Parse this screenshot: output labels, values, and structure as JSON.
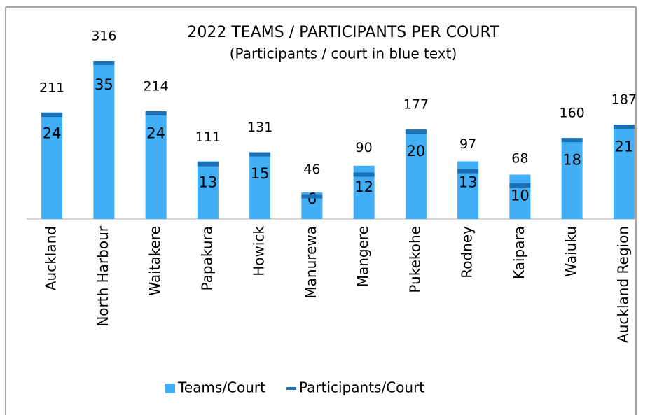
{
  "chart_data": {
    "type": "bar",
    "title": "2022 TEAMS / PARTICIPANTS PER COURT",
    "subtitle": "(Participants / court in blue text)",
    "categories": [
      "Auckland",
      "North Harbour",
      "Waitakere",
      "Papakura",
      "Howick",
      "Manurewa",
      "Mangere",
      "Pukekohe",
      "Rodney",
      "Kaipara",
      "Waiuku",
      "Auckland Region"
    ],
    "series": [
      {
        "name": "Teams/Court",
        "color": "#41aef5",
        "values": [
          24,
          35,
          24,
          13,
          15,
          6,
          12,
          20,
          13,
          10,
          18,
          21
        ]
      },
      {
        "name": "Participants/Court",
        "color": "#1a6fb5",
        "axis": "y2",
        "label_color": "#2f87c8",
        "values": [
          211,
          316,
          214,
          111,
          131,
          46,
          90,
          177,
          97,
          68,
          160,
          187
        ]
      }
    ],
    "ylim": [
      0,
      40
    ],
    "y2lim": [
      0,
      360
    ],
    "legend": "bottom"
  }
}
